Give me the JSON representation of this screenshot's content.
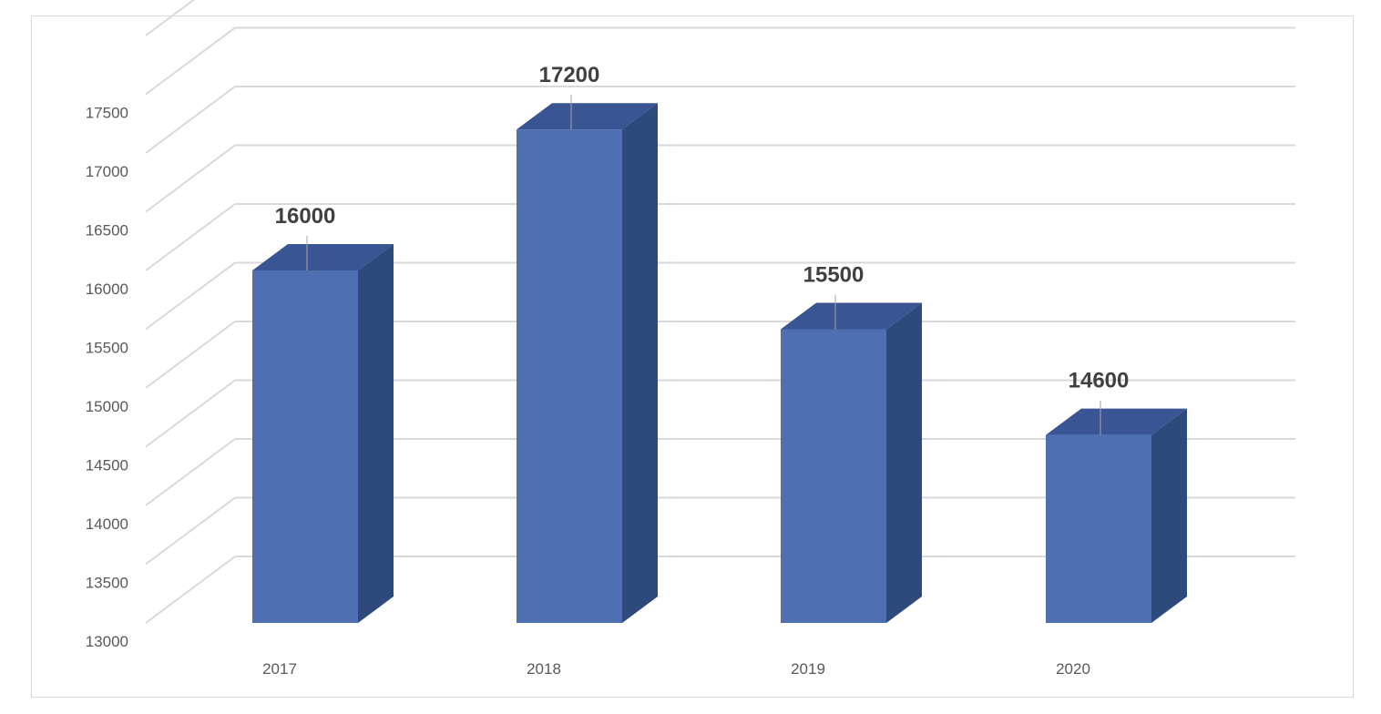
{
  "chart_data": {
    "type": "bar",
    "style": "3d-column",
    "categories": [
      "2017",
      "2018",
      "2019",
      "2020"
    ],
    "values": [
      16000,
      17200,
      15500,
      14600
    ],
    "data_labels": [
      "16000",
      "17200",
      "15500",
      "14600"
    ],
    "y_ticks": [
      "13000",
      "13500",
      "14000",
      "14500",
      "15000",
      "15500",
      "16000",
      "16500",
      "17000",
      "17500"
    ],
    "ylim": [
      13000,
      17500
    ],
    "grid": true,
    "title": "",
    "xlabel": "",
    "ylabel": "",
    "legend": "none",
    "colors": {
      "bar_front": "#4f6fb3",
      "bar_side": "#2e4a7d",
      "bar_top": "#3a5593",
      "grid": "#d9d9d9",
      "label": "#595959",
      "data_label": "#404040"
    }
  }
}
